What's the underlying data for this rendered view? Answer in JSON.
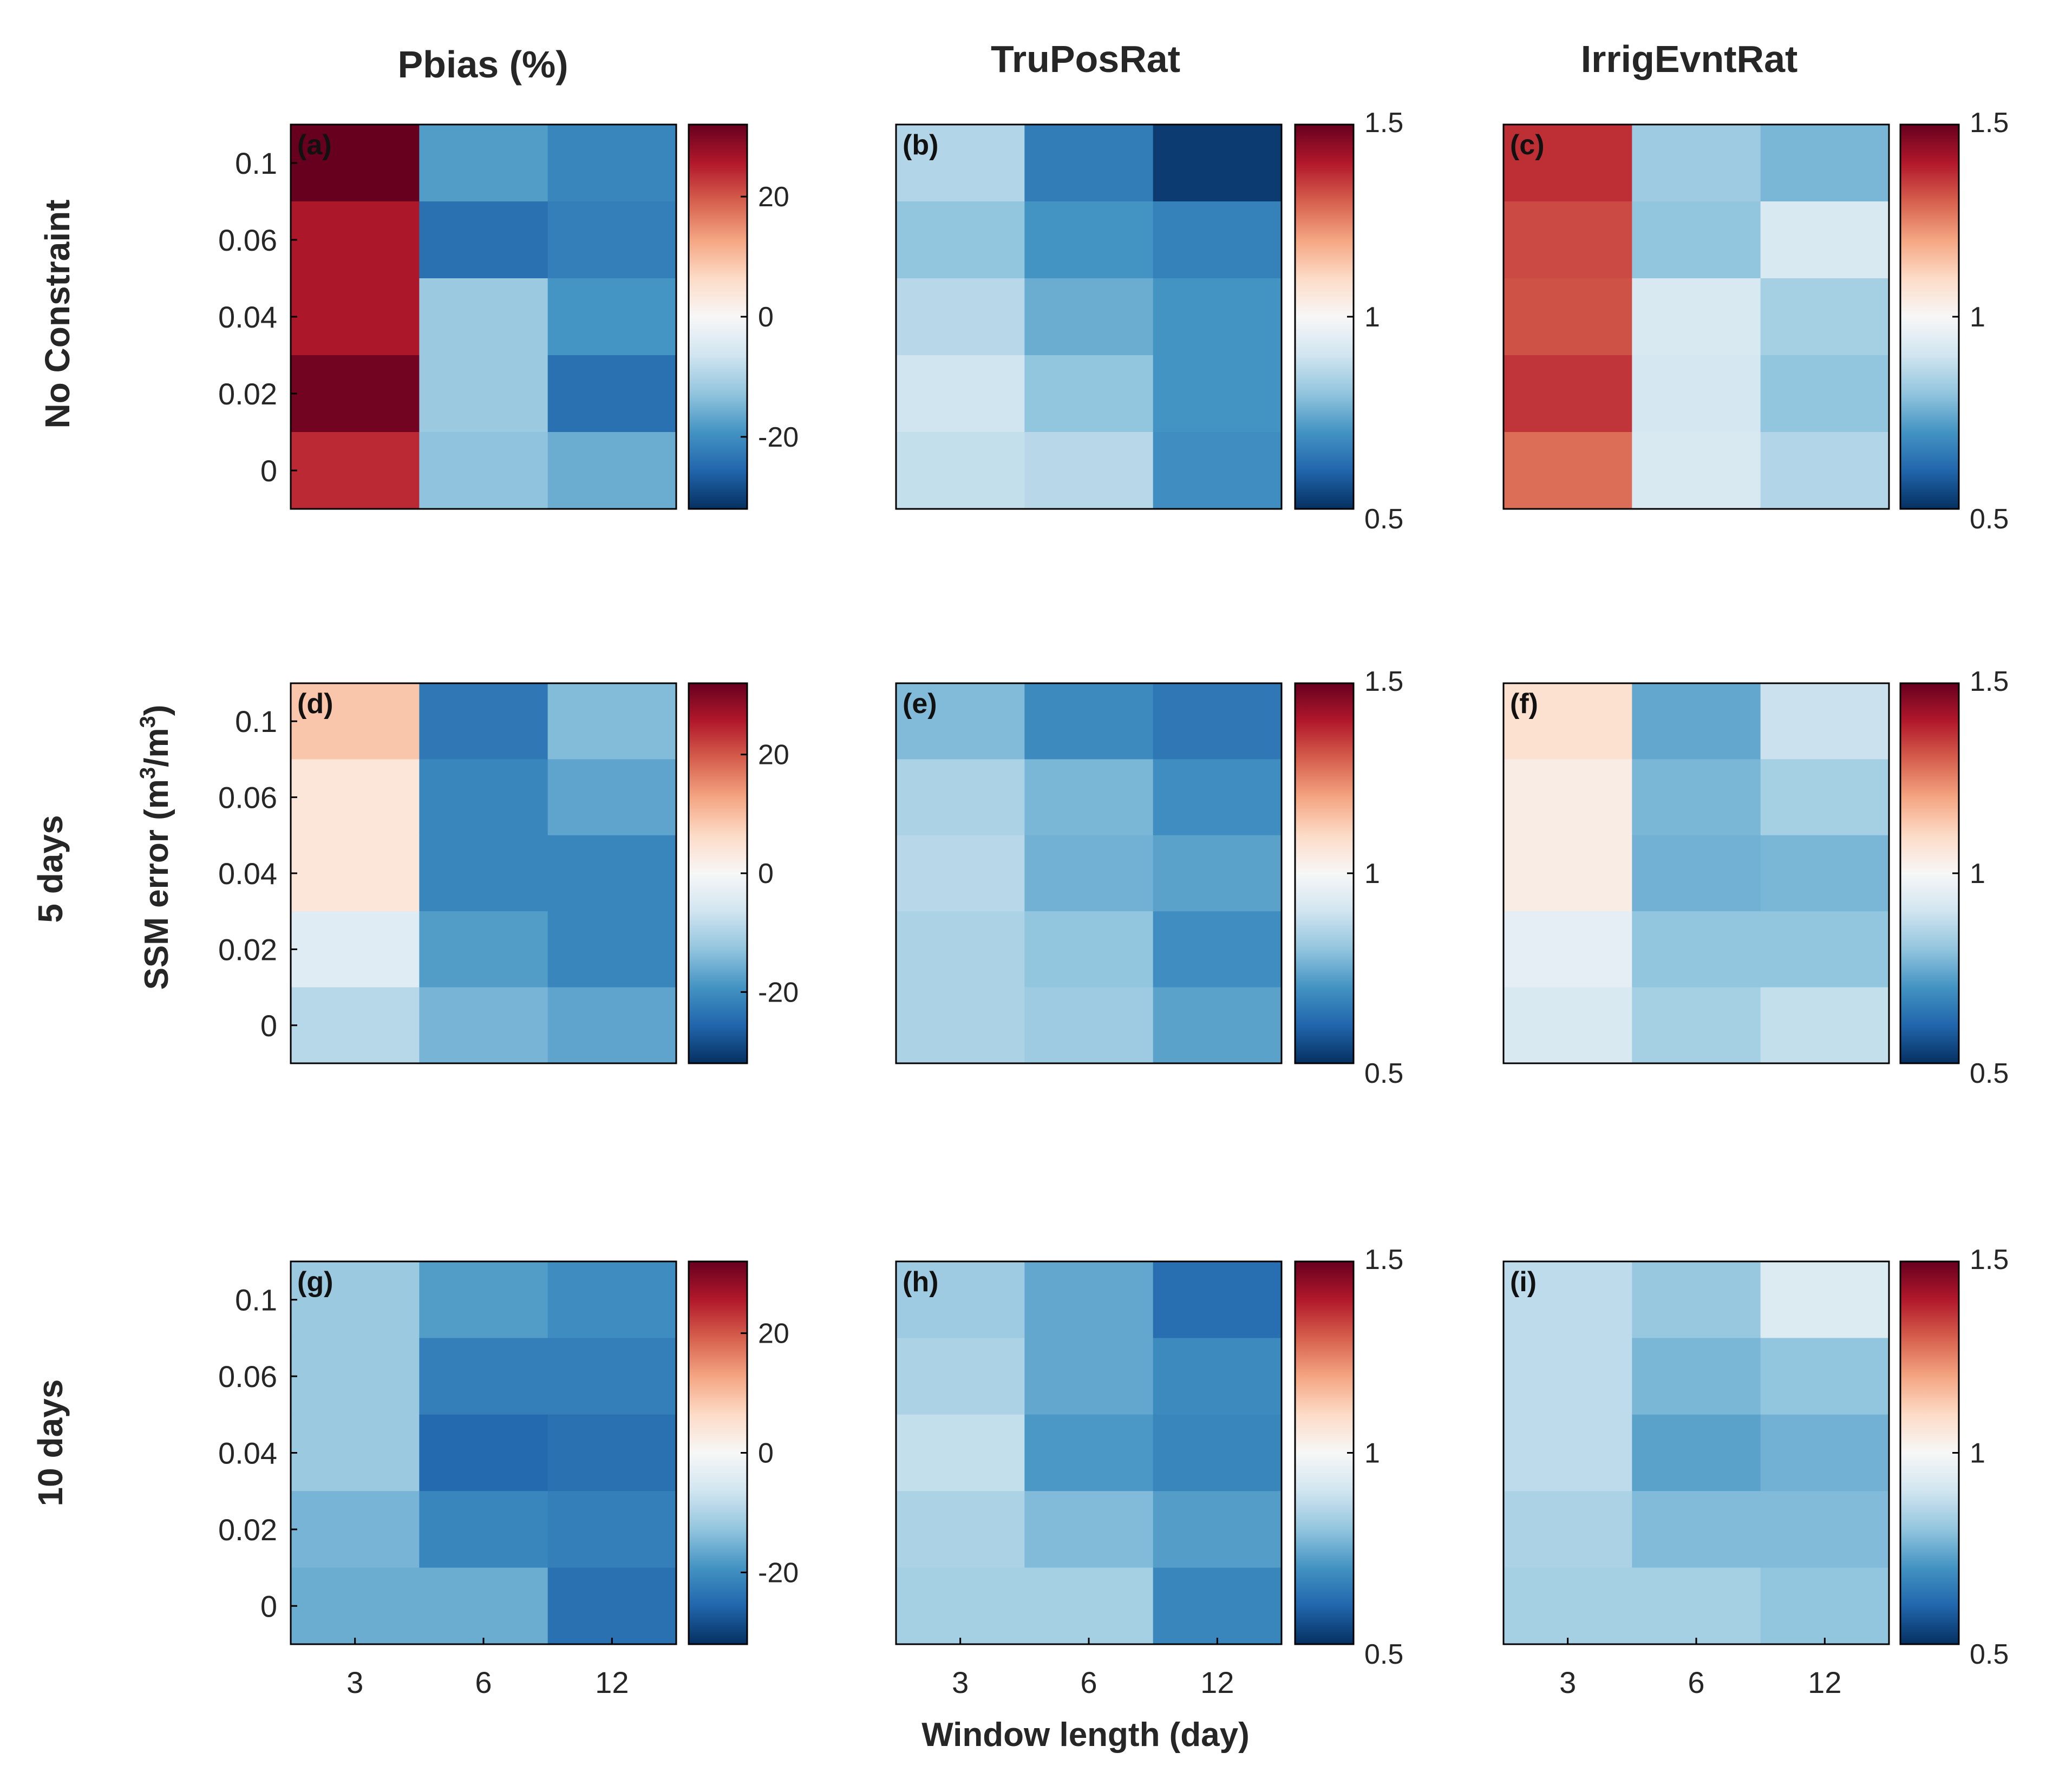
{
  "colors": {
    "colormap": [
      "#053061",
      "#2166ac",
      "#4393c3",
      "#92c5de",
      "#d1e5f0",
      "#f7f7f7",
      "#fddbc7",
      "#f4a582",
      "#d6604d",
      "#b2182b",
      "#67001f"
    ],
    "frame": "#000000",
    "text": "#262626"
  },
  "columns": [
    {
      "title": "Pbias (%)"
    },
    {
      "title": "TruPosRat"
    },
    {
      "title": "IrrigEvntRat"
    }
  ],
  "rows": [
    {
      "title": "No Constraint"
    },
    {
      "title": "5 days"
    },
    {
      "title": "10 days"
    }
  ],
  "xlabel": "Window length (day)",
  "ylabel_text": "SSM error (m",
  "ylabel_sup1": "3",
  "ylabel_mid": "/m",
  "ylabel_sup2": "3",
  "ylabel_end": ")",
  "chart_data": [
    {
      "type": "heatmap",
      "panel": "(a)",
      "metric": "Pbias (%)",
      "constraint": "No Constraint",
      "x_categories": [
        "3",
        "6",
        "12"
      ],
      "y_categories": [
        "0.1",
        "0.06",
        "0.04",
        "0.02",
        "0"
      ],
      "values": [
        [
          33,
          -18,
          -21
        ],
        [
          26,
          -24,
          -22
        ],
        [
          26,
          -12,
          -19
        ],
        [
          31,
          -12,
          -24
        ],
        [
          24,
          -13,
          -16
        ]
      ],
      "clim": [
        -32,
        32
      ],
      "colorbar_ticks": [
        -20,
        0,
        20
      ],
      "colorbar_labels": [
        "-20",
        "0",
        "20"
      ]
    },
    {
      "type": "heatmap",
      "panel": "(b)",
      "metric": "TruPosRat",
      "constraint": "No Constraint",
      "x_categories": [
        "3",
        "6",
        "12"
      ],
      "y_categories": [
        "0.1",
        "0.06",
        "0.04",
        "0.02",
        "0"
      ],
      "values": [
        [
          0.85,
          0.65,
          0.52
        ],
        [
          0.8,
          0.7,
          0.66
        ],
        [
          0.86,
          0.75,
          0.7
        ],
        [
          0.9,
          0.8,
          0.7
        ],
        [
          0.88,
          0.86,
          0.69
        ]
      ],
      "clim": [
        0.5,
        1.5
      ],
      "colorbar_ticks": [
        0.5,
        1,
        1.5
      ],
      "colorbar_labels": [
        "0.5",
        "1",
        "1.5"
      ]
    },
    {
      "type": "heatmap",
      "panel": "(c)",
      "metric": "IrrigEvntRat",
      "constraint": "No Constraint",
      "x_categories": [
        "3",
        "6",
        "12"
      ],
      "y_categories": [
        "0.1",
        "0.06",
        "0.04",
        "0.02",
        "0"
      ],
      "values": [
        [
          1.37,
          0.82,
          0.77
        ],
        [
          1.33,
          0.8,
          0.92
        ],
        [
          1.32,
          0.92,
          0.83
        ],
        [
          1.36,
          0.91,
          0.8
        ],
        [
          1.28,
          0.92,
          0.85
        ]
      ],
      "clim": [
        0.5,
        1.5
      ],
      "colorbar_ticks": [
        0.5,
        1,
        1.5
      ],
      "colorbar_labels": [
        "0.5",
        "1",
        "1.5"
      ]
    },
    {
      "type": "heatmap",
      "panel": "(d)",
      "metric": "Pbias (%)",
      "constraint": "5 days",
      "x_categories": [
        "3",
        "6",
        "12"
      ],
      "y_categories": [
        "0.1",
        "0.06",
        "0.04",
        "0.02",
        "0"
      ],
      "values": [
        [
          9,
          -23,
          -14
        ],
        [
          4,
          -21,
          -17
        ],
        [
          4,
          -21,
          -21
        ],
        [
          -4,
          -18,
          -21
        ],
        [
          -9,
          -15,
          -17
        ]
      ],
      "clim": [
        -32,
        32
      ],
      "colorbar_ticks": [
        -20,
        0,
        20
      ],
      "colorbar_labels": [
        "-20",
        "0",
        "20"
      ]
    },
    {
      "type": "heatmap",
      "panel": "(e)",
      "metric": "TruPosRat",
      "constraint": "5 days",
      "x_categories": [
        "3",
        "6",
        "12"
      ],
      "y_categories": [
        "0.1",
        "0.06",
        "0.04",
        "0.02",
        "0"
      ],
      "values": [
        [
          0.78,
          0.68,
          0.64
        ],
        [
          0.84,
          0.77,
          0.69
        ],
        [
          0.86,
          0.76,
          0.73
        ],
        [
          0.84,
          0.8,
          0.69
        ],
        [
          0.84,
          0.82,
          0.73
        ]
      ],
      "clim": [
        0.5,
        1.5
      ],
      "colorbar_ticks": [
        0.5,
        1,
        1.5
      ],
      "colorbar_labels": [
        "0.5",
        "1",
        "1.5"
      ]
    },
    {
      "type": "heatmap",
      "panel": "(f)",
      "metric": "IrrigEvntRat",
      "constraint": "5 days",
      "x_categories": [
        "3",
        "6",
        "12"
      ],
      "y_categories": [
        "0.1",
        "0.06",
        "0.04",
        "0.02",
        "0"
      ],
      "values": [
        [
          1.08,
          0.74,
          0.89
        ],
        [
          1.04,
          0.77,
          0.83
        ],
        [
          1.04,
          0.76,
          0.77
        ],
        [
          0.95,
          0.8,
          0.8
        ],
        [
          0.92,
          0.83,
          0.88
        ]
      ],
      "clim": [
        0.5,
        1.5
      ],
      "colorbar_ticks": [
        0.5,
        1,
        1.5
      ],
      "colorbar_labels": [
        "0.5",
        "1",
        "1.5"
      ]
    },
    {
      "type": "heatmap",
      "panel": "(g)",
      "metric": "Pbias (%)",
      "constraint": "10 days",
      "x_categories": [
        "3",
        "6",
        "12"
      ],
      "y_categories": [
        "0.1",
        "0.06",
        "0.04",
        "0.02",
        "0"
      ],
      "values": [
        [
          -12,
          -18,
          -20
        ],
        [
          -12,
          -22,
          -22
        ],
        [
          -12,
          -25,
          -24
        ],
        [
          -15,
          -21,
          -22
        ],
        [
          -16,
          -16,
          -24
        ]
      ],
      "clim": [
        -32,
        32
      ],
      "colorbar_ticks": [
        -20,
        0,
        20
      ],
      "colorbar_labels": [
        "-20",
        "0",
        "20"
      ]
    },
    {
      "type": "heatmap",
      "panel": "(h)",
      "metric": "TruPosRat",
      "constraint": "10 days",
      "x_categories": [
        "3",
        "6",
        "12"
      ],
      "y_categories": [
        "0.1",
        "0.06",
        "0.04",
        "0.02",
        "0"
      ],
      "values": [
        [
          0.82,
          0.74,
          0.62
        ],
        [
          0.84,
          0.74,
          0.68
        ],
        [
          0.88,
          0.71,
          0.67
        ],
        [
          0.84,
          0.78,
          0.72
        ],
        [
          0.83,
          0.83,
          0.67
        ]
      ],
      "clim": [
        0.5,
        1.5
      ],
      "colorbar_ticks": [
        0.5,
        1,
        1.5
      ],
      "colorbar_labels": [
        "0.5",
        "1",
        "1.5"
      ]
    },
    {
      "type": "heatmap",
      "panel": "(i)",
      "metric": "IrrigEvntRat",
      "constraint": "10 days",
      "x_categories": [
        "3",
        "6",
        "12"
      ],
      "y_categories": [
        "0.1",
        "0.06",
        "0.04",
        "0.02",
        "0"
      ],
      "values": [
        [
          0.87,
          0.81,
          0.93
        ],
        [
          0.87,
          0.77,
          0.8
        ],
        [
          0.87,
          0.73,
          0.76
        ],
        [
          0.84,
          0.78,
          0.78
        ],
        [
          0.83,
          0.83,
          0.8
        ]
      ],
      "clim": [
        0.5,
        1.5
      ],
      "colorbar_ticks": [
        0.5,
        1,
        1.5
      ],
      "colorbar_labels": [
        "0.5",
        "1",
        "1.5"
      ]
    }
  ]
}
